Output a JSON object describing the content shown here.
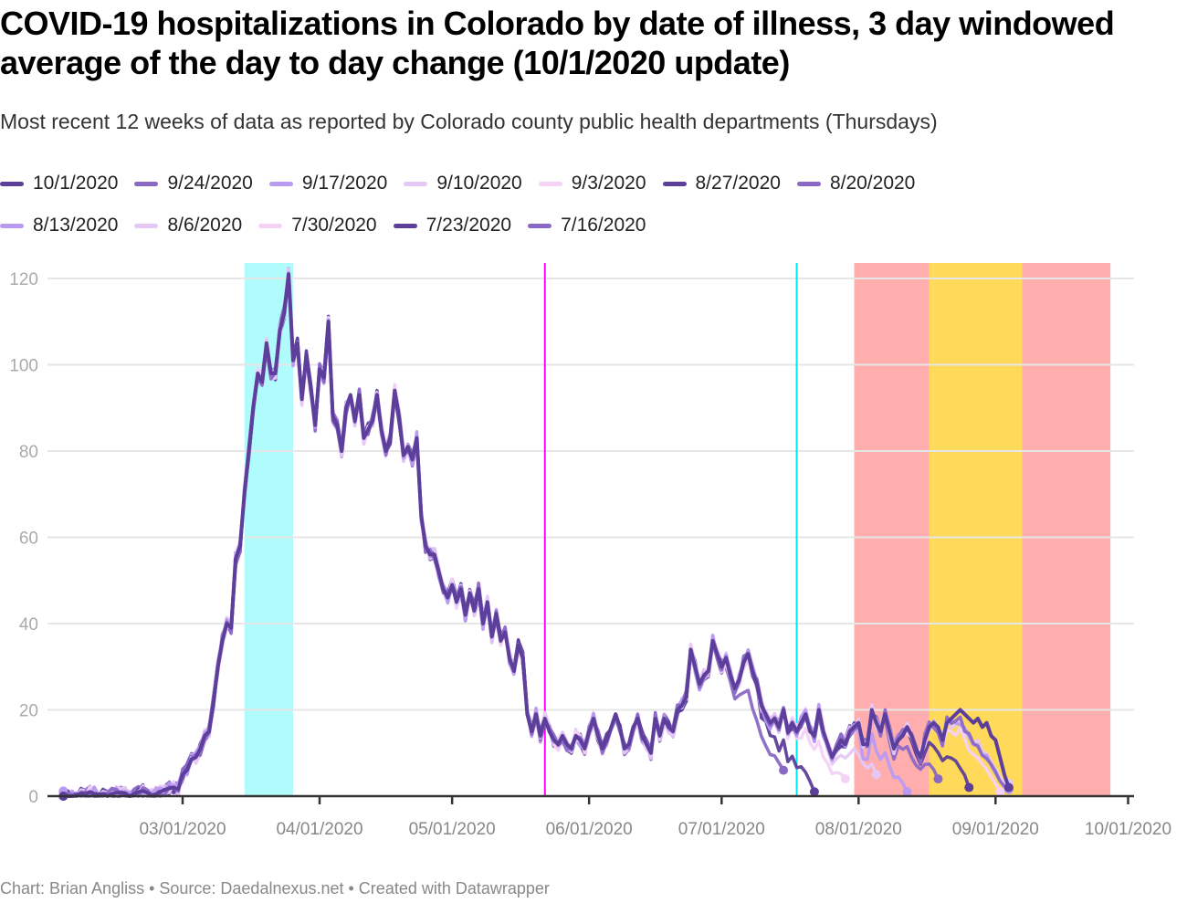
{
  "header": {
    "title": "COVID-19 hospitalizations in Colorado by date of illness, 3 day windowed average of the day to day change (10/1/2020 update)",
    "subtitle": "Most recent 12 weeks of data as reported by Colorado county public health departments (Thursdays)"
  },
  "legend": {
    "rows": [
      [
        {
          "label": "10/1/2020",
          "color": "#5c3e9b"
        },
        {
          "label": "9/24/2020",
          "color": "#8a68c6"
        },
        {
          "label": "9/17/2020",
          "color": "#b99af1"
        },
        {
          "label": "9/10/2020",
          "color": "#e6c8f7"
        },
        {
          "label": "9/3/2020",
          "color": "#f4d3f7"
        },
        {
          "label": "8/27/2020",
          "color": "#5c3e9b"
        },
        {
          "label": "8/20/2020",
          "color": "#8a68c6"
        }
      ],
      [
        {
          "label": "8/13/2020",
          "color": "#b99af1"
        },
        {
          "label": "8/6/2020",
          "color": "#e6c8f7"
        },
        {
          "label": "7/30/2020",
          "color": "#f4d3f7"
        },
        {
          "label": "7/23/2020",
          "color": "#5c3e9b"
        },
        {
          "label": "7/16/2020",
          "color": "#8a68c6"
        }
      ]
    ]
  },
  "footer": {
    "text": "Chart: Brian Angliss • Source: Daedalnexus.net • Created with Datawrapper"
  },
  "chart_data": {
    "type": "line",
    "title": "COVID-19 hospitalizations in Colorado by date of illness, 3 day windowed average of the day to day change (10/1/2020 update)",
    "xlabel": "",
    "ylabel": "",
    "x_start": "2020-02-03",
    "x_range": [
      "2020-02-03",
      "2020-10-02"
    ],
    "ylim": [
      0,
      124
    ],
    "y_ticks": [
      0,
      20,
      40,
      60,
      80,
      100,
      120
    ],
    "x_ticks": [
      "03/01/2020",
      "04/01/2020",
      "05/01/2020",
      "06/01/2020",
      "07/01/2020",
      "08/01/2020",
      "09/01/2020",
      "10/01/2020"
    ],
    "grid": true,
    "legend_position": "top",
    "annotations": {
      "bands": [
        {
          "from": "2020-03-15",
          "to": "2020-03-26",
          "color": "#b0fbfb"
        },
        {
          "from": "2020-07-31",
          "to": "2020-08-17",
          "color": "#ffadad"
        },
        {
          "from": "2020-08-17",
          "to": "2020-09-07",
          "color": "#ffd95a"
        },
        {
          "from": "2020-09-07",
          "to": "2020-09-27",
          "color": "#ffadad"
        }
      ],
      "lines": [
        {
          "date": "2020-05-22",
          "color": "#ff00ff"
        },
        {
          "date": "2020-07-18",
          "color": "#00e8f0"
        }
      ]
    },
    "base_series": [
      0,
      0,
      0,
      0.3,
      0.5,
      0.5,
      1,
      0.6,
      0.4,
      0.5,
      0,
      0.5,
      0.8,
      0.8,
      0.7,
      0,
      0.5,
      1,
      1.2,
      0.8,
      0.2,
      0.5,
      1,
      1.5,
      1.8,
      2,
      1.6,
      5,
      6,
      8.5,
      9,
      11,
      14,
      15,
      22,
      30,
      36,
      40,
      39,
      55,
      58,
      70,
      80,
      90,
      98,
      96,
      105,
      98,
      98,
      108,
      112,
      121,
      101,
      105,
      92,
      102,
      95,
      86,
      99,
      97,
      110,
      88,
      86,
      80,
      90,
      93,
      87,
      93,
      83,
      85,
      87,
      93,
      85,
      80,
      83,
      94,
      88,
      79,
      81,
      78,
      83,
      65,
      58,
      56,
      56,
      52,
      48,
      46,
      49,
      45,
      48,
      42,
      47,
      43,
      48,
      40,
      45,
      37,
      42,
      36,
      38,
      32,
      29,
      35,
      32,
      19,
      15,
      19,
      14,
      18,
      15,
      13,
      12,
      14,
      12,
      11,
      14,
      13,
      11,
      15,
      18,
      14,
      11,
      13,
      16,
      19,
      16,
      11,
      12,
      16,
      18,
      14,
      12,
      10,
      18,
      14,
      18,
      16,
      15,
      20,
      21,
      23,
      34,
      30,
      26,
      28,
      29,
      36,
      33,
      30,
      32,
      28,
      25,
      27,
      31,
      33,
      29,
      26,
      21,
      19,
      17,
      18,
      16,
      20,
      15,
      17,
      15,
      17,
      19,
      15,
      14,
      20,
      15,
      12,
      9,
      11,
      13,
      12,
      15,
      16,
      17,
      12,
      12,
      20,
      17,
      15,
      19,
      15,
      11,
      13,
      14,
      16,
      14,
      11,
      9,
      13,
      16,
      17,
      16,
      13,
      17,
      18,
      19,
      20,
      19,
      18,
      17,
      18,
      16,
      17,
      14,
      13,
      9,
      5,
      2
    ],
    "series": [
      {
        "name": "10/1/2020",
        "end": "2020-09-30",
        "end_value": 2
      },
      {
        "name": "9/24/2020",
        "end": "2020-09-23",
        "end_value": 2
      },
      {
        "name": "9/17/2020",
        "end": "2020-09-16",
        "end_value": 1.5
      },
      {
        "name": "9/10/2020",
        "end": "2020-09-09",
        "end_value": 3
      },
      {
        "name": "9/3/2020",
        "end": "2020-09-02",
        "end_value": 1
      },
      {
        "name": "8/27/2020",
        "end": "2020-08-26",
        "end_value": 2
      },
      {
        "name": "8/20/2020",
        "end": "2020-08-19",
        "end_value": 4
      },
      {
        "name": "8/13/2020",
        "end": "2020-08-12",
        "end_value": 1
      },
      {
        "name": "8/6/2020",
        "end": "2020-08-05",
        "end_value": 5
      },
      {
        "name": "7/30/2020",
        "end": "2020-07-29",
        "end_value": 4
      },
      {
        "name": "7/23/2020",
        "end": "2020-07-22",
        "end_value": 1
      },
      {
        "name": "7/16/2020",
        "end": "2020-07-15",
        "end_value": 6
      }
    ]
  }
}
